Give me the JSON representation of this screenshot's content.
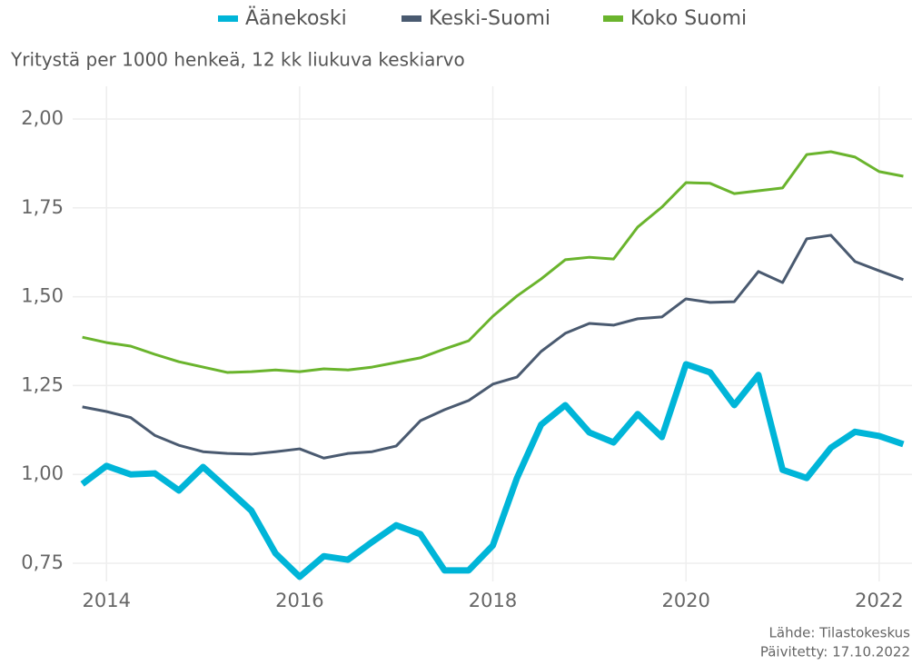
{
  "chart_data": {
    "type": "line",
    "subtitle": "Yritystä per 1000 henkeä, 12 kk liukuva keskiarvo",
    "annotations": [
      "Lähde: Tilastokeskus",
      "Päivitetty: 17.10.2022"
    ],
    "x": [
      2013.75,
      2014,
      2014.25,
      2014.5,
      2014.75,
      2015,
      2015.25,
      2015.5,
      2015.75,
      2016,
      2016.25,
      2016.5,
      2016.75,
      2017,
      2017.25,
      2017.5,
      2017.75,
      2018,
      2018.25,
      2018.5,
      2018.75,
      2019,
      2019.25,
      2019.5,
      2019.75,
      2020,
      2020.25,
      2020.5,
      2020.75,
      2021,
      2021.25,
      2021.5,
      2021.75,
      2022,
      2022.25
    ],
    "series": [
      {
        "name": "Äänekoski",
        "color": "#00b5d8",
        "values": [
          0.973,
          1.024,
          1.0,
          1.003,
          0.955,
          1.021,
          0.96,
          0.898,
          0.778,
          0.712,
          0.77,
          0.76,
          0.81,
          0.857,
          0.832,
          0.73,
          0.73,
          0.8,
          0.99,
          1.14,
          1.195,
          1.118,
          1.09,
          1.17,
          1.105,
          1.31,
          1.287,
          1.195,
          1.28,
          1.013,
          0.99,
          1.075,
          1.12,
          1.108,
          1.085
        ]
      },
      {
        "name": "Keski-Suomi",
        "color": "#4a5a70",
        "values": [
          1.19,
          1.177,
          1.16,
          1.11,
          1.082,
          1.064,
          1.059,
          1.057,
          1.064,
          1.072,
          1.046,
          1.059,
          1.064,
          1.08,
          1.151,
          1.182,
          1.208,
          1.254,
          1.274,
          1.346,
          1.397,
          1.425,
          1.42,
          1.438,
          1.443,
          1.494,
          1.484,
          1.486,
          1.571,
          1.54,
          1.663,
          1.673,
          1.599,
          1.573,
          1.548
        ]
      },
      {
        "name": "Koko Suomi",
        "color": "#6ab42d",
        "values": [
          1.386,
          1.371,
          1.361,
          1.338,
          1.317,
          1.302,
          1.287,
          1.289,
          1.294,
          1.289,
          1.297,
          1.294,
          1.302,
          1.315,
          1.328,
          1.353,
          1.376,
          1.445,
          1.502,
          1.55,
          1.604,
          1.611,
          1.606,
          1.696,
          1.752,
          1.821,
          1.819,
          1.79,
          1.798,
          1.806,
          1.9,
          1.908,
          1.893,
          1.852,
          1.839
        ]
      }
    ],
    "xlim": [
      2013.65,
      2022.34
    ],
    "xticks": [
      2014,
      2016,
      2018,
      2020,
      2022
    ],
    "ylim": [
      0.699,
      2.092
    ],
    "yticks": [
      {
        "value": 0.75,
        "label": "0,75"
      },
      {
        "value": 1.0,
        "label": "1,00"
      },
      {
        "value": 1.25,
        "label": "1,25"
      },
      {
        "value": 1.5,
        "label": "1,50"
      },
      {
        "value": 1.75,
        "label": "1,75"
      },
      {
        "value": 2.0,
        "label": "2,00"
      }
    ],
    "grid": true,
    "legend": "top"
  }
}
